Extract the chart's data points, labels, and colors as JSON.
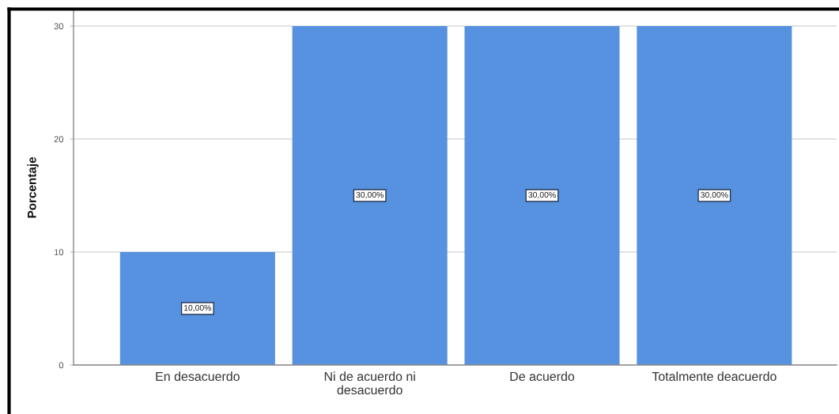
{
  "chart_data": {
    "type": "bar",
    "ylabel": "Porcentaje",
    "categories": [
      "En desacuerdo",
      "Ni de acuerdo ni desacuerdo",
      "De acuerdo",
      "Totalmente deacuerdo"
    ],
    "values": [
      10,
      30,
      30,
      30
    ],
    "value_labels": [
      "10,00%",
      "30,00%",
      "30,00%",
      "30,00%"
    ],
    "color": "#5692e0",
    "ylim": [
      0,
      31.4
    ],
    "yticks": [
      0,
      10,
      20,
      30
    ],
    "grid": "y"
  }
}
